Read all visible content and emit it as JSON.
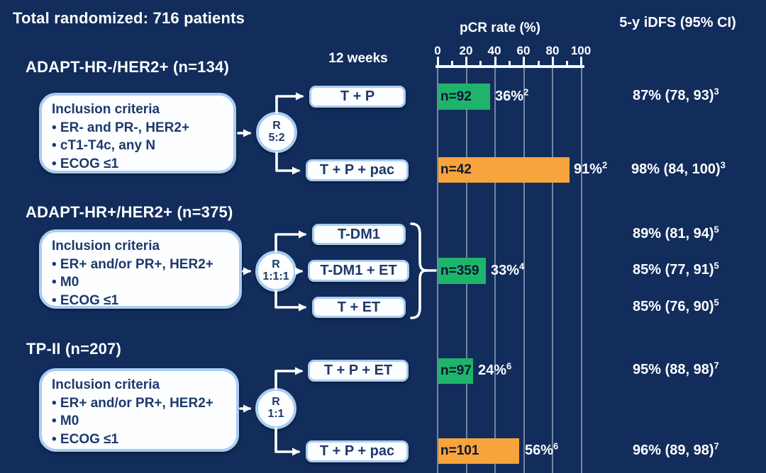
{
  "title": "Total randomized: 716 patients",
  "columns": {
    "weeks_label": "12 weeks",
    "pcr_header": "pCR rate (%)",
    "idfs_header": "5-y iDFS (95% CI)"
  },
  "axis": {
    "ticks": [
      0,
      20,
      40,
      60,
      80,
      100
    ],
    "min": 0,
    "max": 100
  },
  "colors": {
    "background": "#122d5c",
    "green_bar": "#1fb46b",
    "orange_bar": "#f7a43c",
    "box_border": "#a9cdf2",
    "box_text": "#1c3a6d",
    "grid": "#c3cdde",
    "text": "#ffffff"
  },
  "sections": [
    {
      "header": "ADAPT-HR-/HER2+ (n=134)",
      "inclusion": {
        "title": "Inclusion criteria",
        "items": [
          "• ER- and PR-, HER2+",
          "• cT1-T4c, any N",
          "• ECOG ≤1"
        ]
      },
      "rand": {
        "label": "R",
        "ratio": "5:2"
      },
      "arms": [
        {
          "box": "T + P",
          "n": "n=92",
          "bar_pct": 36,
          "bar_color": "#1fb46b",
          "pct": "36%",
          "pct_sup": "2",
          "idfs": "87%  (78, 93)",
          "idfs_sup": "3"
        },
        {
          "box": "T + P + pac",
          "n": "n=42",
          "bar_pct": 91,
          "bar_color": "#f7a43c",
          "pct": "91%",
          "pct_sup": "2",
          "idfs": "98%  (84, 100)",
          "idfs_sup": "3"
        }
      ]
    },
    {
      "header": "ADAPT-HR+/HER2+ (n=375)",
      "inclusion": {
        "title": "Inclusion criteria",
        "items": [
          "• ER+ and/or PR+, HER2+",
          "• M0",
          "• ECOG ≤1"
        ]
      },
      "rand": {
        "label": "R",
        "ratio": "1:1:1"
      },
      "arms": [
        {
          "box": "T-DM1",
          "idfs": "89%  (81, 94)",
          "idfs_sup": "5"
        },
        {
          "box": "T-DM1 + ET",
          "idfs": "85%  (77, 91)",
          "idfs_sup": "5"
        },
        {
          "box": "T + ET",
          "idfs": "85%  (76, 90)",
          "idfs_sup": "5"
        }
      ],
      "pooled_bar": {
        "n": "n=359",
        "bar_pct": 33,
        "bar_color": "#1fb46b",
        "pct": "33%",
        "pct_sup": "4"
      }
    },
    {
      "header": "TP-II (n=207)",
      "inclusion": {
        "title": "Inclusion criteria",
        "items": [
          "• ER+ and/or PR+, HER2+",
          "• M0",
          "• ECOG ≤1"
        ]
      },
      "rand": {
        "label": "R",
        "ratio": "1:1"
      },
      "arms": [
        {
          "box": "T + P + ET",
          "n": "n=97",
          "bar_pct": 24,
          "bar_color": "#1fb46b",
          "pct": "24%",
          "pct_sup": "6",
          "idfs": "95%  (88, 98)",
          "idfs_sup": "7"
        },
        {
          "box": "T + P + pac",
          "n": "n=101",
          "bar_pct": 56,
          "bar_color": "#f7a43c",
          "pct": "56%",
          "pct_sup": "6",
          "idfs": "96%  (89, 98)",
          "idfs_sup": "7"
        }
      ]
    }
  ],
  "chart_data": {
    "type": "bar",
    "orientation": "horizontal",
    "title": "pCR rate (%)",
    "xlabel": "pCR rate (%)",
    "xlim": [
      0,
      100
    ],
    "x_ticks": [
      0,
      20,
      40,
      60,
      80,
      100
    ],
    "grid": true,
    "bars": [
      {
        "trial": "ADAPT-HR-/HER2+ (n=134)",
        "arm": "T + P",
        "n": 92,
        "pcr_pct": 36,
        "pcr_footnote": 2,
        "color": "#1fb46b",
        "idfs_5y_pct": 87,
        "idfs_ci": [
          78,
          93
        ],
        "idfs_footnote": 3
      },
      {
        "trial": "ADAPT-HR-/HER2+ (n=134)",
        "arm": "T + P + pac",
        "n": 42,
        "pcr_pct": 91,
        "pcr_footnote": 2,
        "color": "#f7a43c",
        "idfs_5y_pct": 98,
        "idfs_ci": [
          84,
          100
        ],
        "idfs_footnote": 3
      },
      {
        "trial": "ADAPT-HR+/HER2+ (n=375)",
        "arm": "T-DM1 / T-DM1 + ET / T + ET (pooled)",
        "n": 359,
        "pcr_pct": 33,
        "pcr_footnote": 4,
        "color": "#1fb46b"
      },
      {
        "trial": "TP-II (n=207)",
        "arm": "T + P + ET",
        "n": 97,
        "pcr_pct": 24,
        "pcr_footnote": 6,
        "color": "#1fb46b",
        "idfs_5y_pct": 95,
        "idfs_ci": [
          88,
          98
        ],
        "idfs_footnote": 7
      },
      {
        "trial": "TP-II (n=207)",
        "arm": "T + P + pac",
        "n": 101,
        "pcr_pct": 56,
        "pcr_footnote": 6,
        "color": "#f7a43c",
        "idfs_5y_pct": 96,
        "idfs_ci": [
          89,
          98
        ],
        "idfs_footnote": 7
      }
    ],
    "idfs_by_arm": [
      {
        "arm": "T-DM1",
        "idfs_5y_pct": 89,
        "idfs_ci": [
          81,
          94
        ],
        "footnote": 5
      },
      {
        "arm": "T-DM1 + ET",
        "idfs_5y_pct": 85,
        "idfs_ci": [
          77,
          91
        ],
        "footnote": 5
      },
      {
        "arm": "T + ET",
        "idfs_5y_pct": 85,
        "idfs_ci": [
          76,
          90
        ],
        "footnote": 5
      }
    ]
  }
}
